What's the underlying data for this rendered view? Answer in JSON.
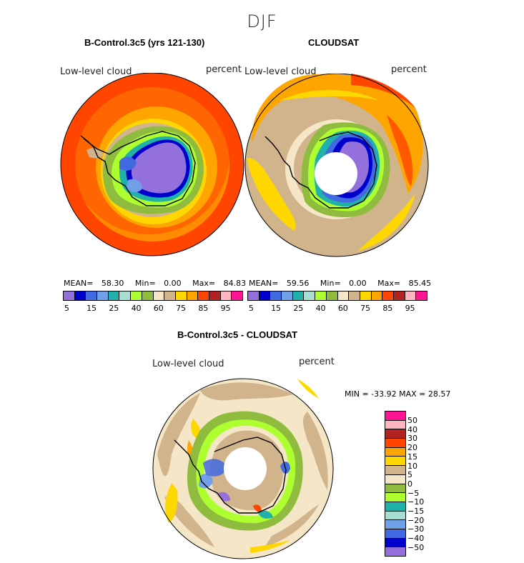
{
  "figure": {
    "season": "DJF"
  },
  "panels": {
    "model": {
      "title": "B-Control.3c5 (yrs 121-130)",
      "variable": "Low-level cloud",
      "units": "percent",
      "mean_label": "MEAN=",
      "mean": "58.30",
      "min_label": "Min=",
      "min": "0.00",
      "max_label": "Max=",
      "max": "84.83"
    },
    "obs": {
      "title": "CLOUDSAT",
      "variable": "Low-level cloud",
      "units": "percent",
      "mean_label": "MEAN=",
      "mean": "59.56",
      "min_label": "Min=",
      "min": "0.00",
      "max_label": "Max=",
      "max": "85.45"
    },
    "diff": {
      "title": "B-Control.3c5 - CLOUDSAT",
      "variable": "Low-level cloud",
      "units": "percent",
      "minmax": "MIN = -33.92 MAX =  28.57"
    }
  },
  "colorbar_cloud": {
    "colors": [
      "#9370db",
      "#0000cd",
      "#4169e1",
      "#6fa0e8",
      "#20b2aa",
      "#a8ddd2",
      "#adff2f",
      "#8fbc3f",
      "#f5e6c8",
      "#d2b48c",
      "#ffd700",
      "#ffa500",
      "#ff4500",
      "#b22222",
      "#ffb6c1",
      "#ff1493"
    ],
    "labels": [
      "5",
      "15",
      "25",
      "40",
      "60",
      "75",
      "85",
      "95"
    ]
  },
  "colorbar_diff": {
    "colors": [
      "#ff1493",
      "#ffb6c1",
      "#b22222",
      "#ff4500",
      "#ffa500",
      "#ffd700",
      "#d2b48c",
      "#f5e6c8",
      "#8fbc3f",
      "#adff2f",
      "#20b2aa",
      "#a8ddd2",
      "#6fa0e8",
      "#4169e1",
      "#0000cd",
      "#9370db"
    ],
    "labels": [
      "50",
      "40",
      "30",
      "20",
      "15",
      "10",
      "5",
      "0",
      "−5",
      "−10",
      "−15",
      "−20",
      "−30",
      "−40",
      "−50"
    ]
  }
}
